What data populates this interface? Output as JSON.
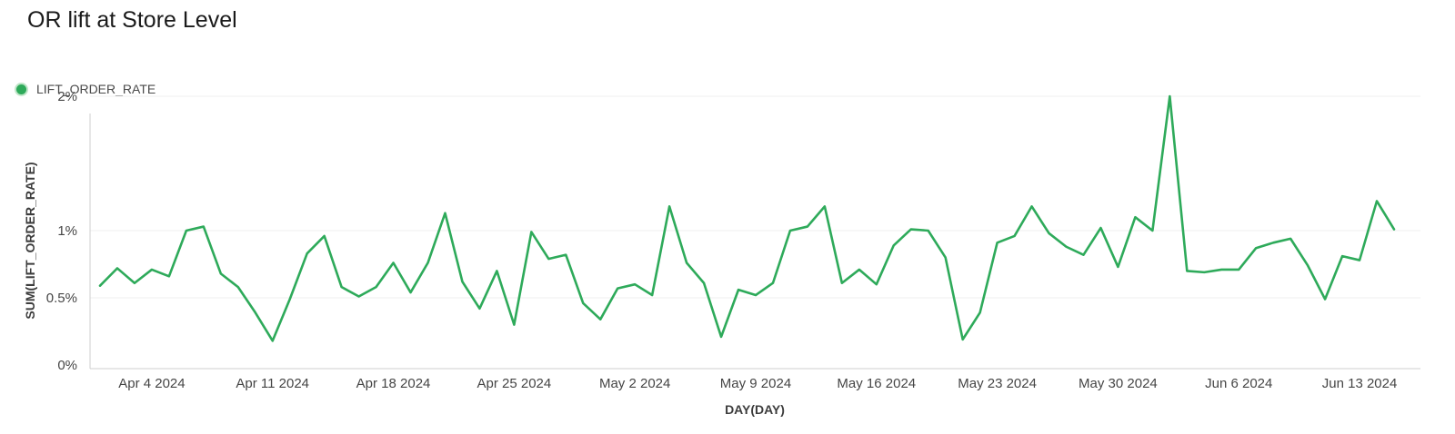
{
  "title": "OR lift at Store Level",
  "legend": {
    "label": "LIFT_ORDER_RATE",
    "color": "#2eaa5a"
  },
  "chart_data": {
    "type": "line",
    "title": "OR lift at Store Level",
    "xlabel": "DAY(DAY)",
    "ylabel": "SUM(LIFT_ORDER_RATE)",
    "ylim": [
      0,
      2.3
    ],
    "yticks": [
      {
        "value": 0,
        "label": "0%"
      },
      {
        "value": 0.5,
        "label": "0.5%"
      },
      {
        "value": 1,
        "label": "1%"
      },
      {
        "value": 2,
        "label": "2%"
      }
    ],
    "xticks": [
      "Apr 4 2024",
      "Apr 11 2024",
      "Apr 18 2024",
      "Apr 25 2024",
      "May 2 2024",
      "May 9 2024",
      "May 16 2024",
      "May 23 2024",
      "May 30 2024",
      "Jun 6 2024",
      "Jun 13 2024"
    ],
    "grid": true,
    "legend_position": "top-left",
    "series": [
      {
        "name": "LIFT_ORDER_RATE",
        "color": "#2eaa5a",
        "x": [
          "2024-04-01",
          "2024-04-02",
          "2024-04-03",
          "2024-04-04",
          "2024-04-05",
          "2024-04-06",
          "2024-04-07",
          "2024-04-08",
          "2024-04-09",
          "2024-04-10",
          "2024-04-11",
          "2024-04-12",
          "2024-04-13",
          "2024-04-14",
          "2024-04-15",
          "2024-04-16",
          "2024-04-17",
          "2024-04-18",
          "2024-04-19",
          "2024-04-20",
          "2024-04-21",
          "2024-04-22",
          "2024-04-23",
          "2024-04-24",
          "2024-04-25",
          "2024-04-26",
          "2024-04-27",
          "2024-04-28",
          "2024-04-29",
          "2024-04-30",
          "2024-05-01",
          "2024-05-02",
          "2024-05-03",
          "2024-05-04",
          "2024-05-05",
          "2024-05-06",
          "2024-05-07",
          "2024-05-08",
          "2024-05-09",
          "2024-05-10",
          "2024-05-11",
          "2024-05-12",
          "2024-05-13",
          "2024-05-14",
          "2024-05-15",
          "2024-05-16",
          "2024-05-17",
          "2024-05-18",
          "2024-05-19",
          "2024-05-20",
          "2024-05-21",
          "2024-05-22",
          "2024-05-23",
          "2024-05-24",
          "2024-05-25",
          "2024-05-26",
          "2024-05-27",
          "2024-05-28",
          "2024-05-29",
          "2024-05-30",
          "2024-05-31",
          "2024-06-01",
          "2024-06-02",
          "2024-06-03",
          "2024-06-04",
          "2024-06-05",
          "2024-06-06",
          "2024-06-07",
          "2024-06-08",
          "2024-06-09",
          "2024-06-10",
          "2024-06-11",
          "2024-06-12",
          "2024-06-13",
          "2024-06-14",
          "2024-06-15"
        ],
        "values": [
          0.59,
          0.72,
          0.61,
          0.71,
          0.66,
          1.0,
          1.03,
          0.68,
          0.58,
          0.39,
          0.18,
          0.49,
          0.83,
          0.96,
          0.58,
          0.51,
          0.58,
          0.76,
          0.54,
          0.76,
          1.13,
          0.62,
          0.42,
          0.7,
          0.3,
          0.99,
          0.79,
          0.82,
          0.46,
          0.34,
          0.57,
          0.6,
          0.52,
          1.18,
          0.76,
          0.61,
          0.21,
          0.56,
          0.52,
          0.61,
          1.0,
          1.03,
          1.18,
          0.61,
          0.71,
          0.6,
          0.89,
          1.01,
          1.0,
          0.8,
          0.19,
          0.39,
          0.91,
          0.96,
          1.18,
          0.98,
          0.88,
          0.82,
          1.02,
          0.73,
          1.1,
          1.0,
          2.0,
          0.7,
          0.69,
          0.71,
          0.71,
          0.87,
          0.91,
          0.94,
          0.74,
          0.49,
          0.81,
          0.78,
          1.22,
          1.01
        ]
      }
    ]
  }
}
